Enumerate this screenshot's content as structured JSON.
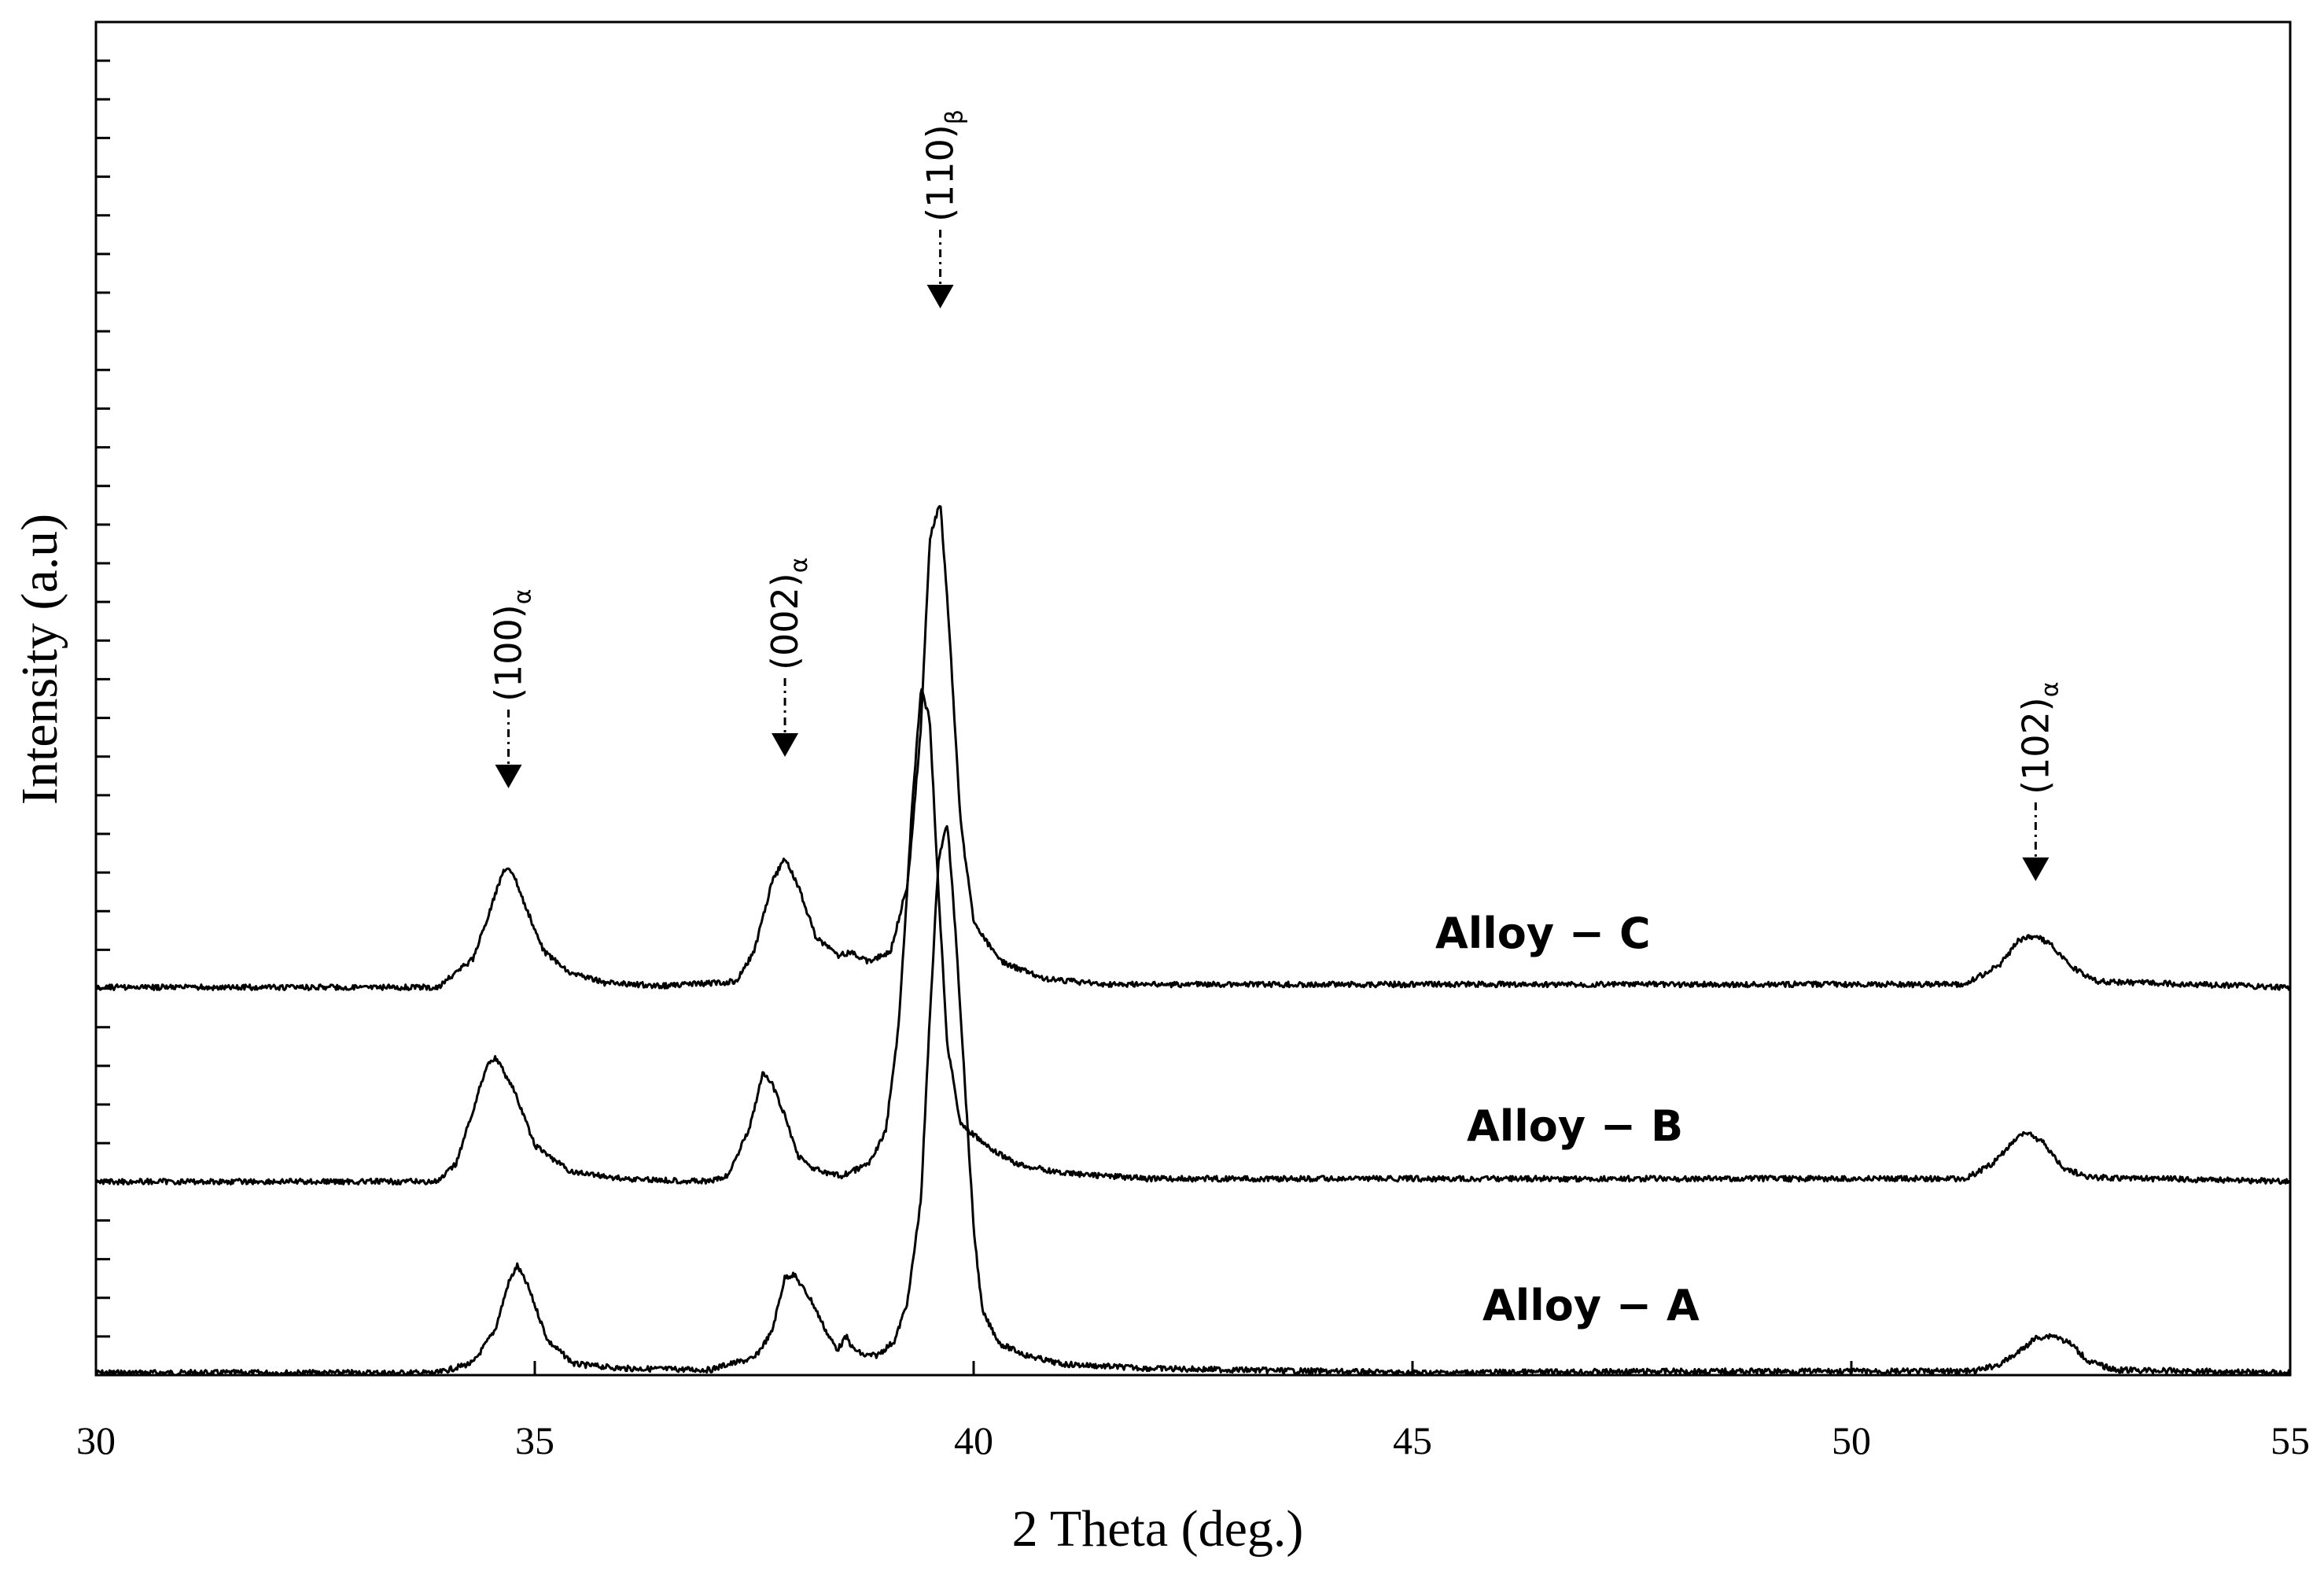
{
  "chart_data": {
    "type": "line",
    "title": "",
    "xlabel": "2 Theta (deg.)",
    "ylabel": "Intensity (a.u)",
    "xlim": [
      30,
      55
    ],
    "x_ticks": [
      "30",
      "35",
      "40",
      "45",
      "50",
      "55"
    ],
    "y_tick_labels_shown": false,
    "grid": false,
    "line_color": "#000000",
    "series": [
      {
        "name": "Alloy − A",
        "baseline": 0,
        "points": [
          [
            30,
            0
          ],
          [
            33.9,
            0
          ],
          [
            34.3,
            7
          ],
          [
            34.55,
            30
          ],
          [
            34.7,
            62
          ],
          [
            34.8,
            74
          ],
          [
            34.92,
            60
          ],
          [
            35.15,
            22
          ],
          [
            35.45,
            6
          ],
          [
            36,
            3
          ],
          [
            37,
            2
          ],
          [
            37.15,
            5
          ],
          [
            37.5,
            10
          ],
          [
            37.7,
            28
          ],
          [
            37.85,
            66
          ],
          [
            37.95,
            68
          ],
          [
            38.15,
            50
          ],
          [
            38.35,
            25
          ],
          [
            38.45,
            16
          ],
          [
            38.55,
            25
          ],
          [
            38.62,
            17
          ],
          [
            38.75,
            12
          ],
          [
            38.9,
            12
          ],
          [
            39.1,
            22
          ],
          [
            39.25,
            50
          ],
          [
            39.4,
            120
          ],
          [
            39.5,
            245
          ],
          [
            39.6,
            355
          ],
          [
            39.7,
            380
          ],
          [
            39.8,
            300
          ],
          [
            39.9,
            200
          ],
          [
            40,
            100
          ],
          [
            40.1,
            42
          ],
          [
            40.3,
            20
          ],
          [
            40.6,
            12
          ],
          [
            41,
            6
          ],
          [
            42,
            3
          ],
          [
            45,
            0
          ],
          [
            48,
            1
          ],
          [
            51.4,
            1
          ],
          [
            51.7,
            6
          ],
          [
            51.9,
            14
          ],
          [
            52.1,
            24
          ],
          [
            52.3,
            26
          ],
          [
            52.5,
            20
          ],
          [
            52.7,
            8
          ],
          [
            53,
            2
          ],
          [
            55,
            0
          ]
        ],
        "label_text": "Alloy − A"
      },
      {
        "name": "Alloy − B",
        "baseline": 0,
        "points": [
          [
            30,
            0
          ],
          [
            33.9,
            0
          ],
          [
            34.1,
            12
          ],
          [
            34.3,
            50
          ],
          [
            34.45,
            80
          ],
          [
            34.55,
            86
          ],
          [
            34.75,
            65
          ],
          [
            35,
            25
          ],
          [
            35.4,
            7
          ],
          [
            36,
            2
          ],
          [
            37,
            0
          ],
          [
            37.2,
            4
          ],
          [
            37.45,
            38
          ],
          [
            37.6,
            75
          ],
          [
            37.7,
            68
          ],
          [
            37.85,
            45
          ],
          [
            38,
            18
          ],
          [
            38.15,
            10
          ],
          [
            38.3,
            6
          ],
          [
            38.5,
            4
          ],
          [
            38.8,
            12
          ],
          [
            39,
            35
          ],
          [
            39.15,
            110
          ],
          [
            39.3,
            260
          ],
          [
            39.4,
            340
          ],
          [
            39.5,
            320
          ],
          [
            39.6,
            200
          ],
          [
            39.7,
            95
          ],
          [
            39.85,
            40
          ],
          [
            40.2,
            22
          ],
          [
            40.5,
            12
          ],
          [
            41,
            6
          ],
          [
            42,
            2
          ],
          [
            51.3,
            2
          ],
          [
            51.6,
            12
          ],
          [
            51.85,
            28
          ],
          [
            52,
            34
          ],
          [
            52.2,
            26
          ],
          [
            52.4,
            10
          ],
          [
            52.7,
            3
          ],
          [
            55,
            0
          ]
        ],
        "label_text": "Alloy − B"
      },
      {
        "name": "Alloy − C",
        "baseline": 0,
        "points": [
          [
            30,
            0
          ],
          [
            33.9,
            0
          ],
          [
            34.3,
            20
          ],
          [
            34.5,
            55
          ],
          [
            34.65,
            82
          ],
          [
            34.75,
            80
          ],
          [
            34.9,
            55
          ],
          [
            35.1,
            25
          ],
          [
            35.4,
            10
          ],
          [
            35.8,
            3
          ],
          [
            36.5,
            1
          ],
          [
            37.3,
            4
          ],
          [
            37.5,
            25
          ],
          [
            37.7,
            72
          ],
          [
            37.85,
            90
          ],
          [
            38,
            70
          ],
          [
            38.2,
            35
          ],
          [
            38.45,
            22
          ],
          [
            38.6,
            24
          ],
          [
            38.8,
            18
          ],
          [
            39.05,
            24
          ],
          [
            39.25,
            72
          ],
          [
            39.4,
            180
          ],
          [
            39.5,
            310
          ],
          [
            39.62,
            335
          ],
          [
            39.72,
            250
          ],
          [
            39.85,
            115
          ],
          [
            40,
            45
          ],
          [
            40.3,
            18
          ],
          [
            40.8,
            6
          ],
          [
            41.5,
            2
          ],
          [
            51.3,
            2
          ],
          [
            51.7,
            16
          ],
          [
            51.9,
            32
          ],
          [
            52.1,
            36
          ],
          [
            52.3,
            28
          ],
          [
            52.5,
            14
          ],
          [
            52.8,
            4
          ],
          [
            55,
            0
          ]
        ],
        "label_text": "Alloy − C"
      }
    ],
    "annotations": [
      {
        "x": 34.7,
        "text": "(100)",
        "subscript": "α"
      },
      {
        "x": 37.85,
        "text": "(002)",
        "subscript": "α"
      },
      {
        "x": 39.62,
        "text": "(110)",
        "subscript": "β"
      },
      {
        "x": 52.1,
        "text": "(102)",
        "subscript": "α"
      }
    ]
  }
}
